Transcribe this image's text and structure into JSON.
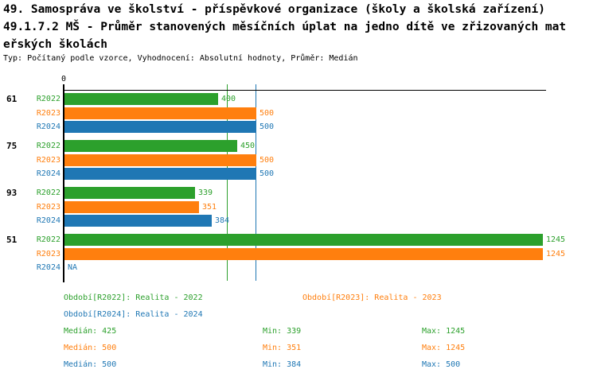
{
  "header": {
    "title_line1": "49. Samospráva ve školství - příspěvkové organizace (školy a školská zařízení)",
    "title_line2": "49.1.7.2 MŠ - Průměr stanovených měsíčních úplat na jedno dítě ve zřizovaných mat",
    "title_line3": "eřských školách",
    "meta_line": "Typ: Počítaný podle vzorce, Vyhodnocení: Absolutní hodnoty, Průměr: Medián"
  },
  "chart_data": {
    "type": "bar",
    "orientation": "horizontal",
    "title": "49. Samospráva ve školství - příspěvkové organizace (školy a školská zařízení)",
    "subtitle": "49.1.7.2 MŠ - Průměr stanovených měsíčních úplat na jedno dítě ve zřizovaných mateřských školách",
    "meta": "Typ: Počítaný podle vzorce, Vyhodnocení: Absolutní hodnoty, Průměr: Medián",
    "x_axis": {
      "origin_label": "0",
      "min": 0,
      "max_value_shown": 1245,
      "grid": false
    },
    "categories": [
      "61",
      "75",
      "93",
      "51"
    ],
    "series": [
      {
        "name": "R2022",
        "color": "#2ca02c",
        "values": [
          400,
          450,
          339,
          1245
        ]
      },
      {
        "name": "R2023",
        "color": "#ff7f0e",
        "values": [
          500,
          500,
          351,
          1245
        ]
      },
      {
        "name": "R2024",
        "color": "#1f77b4",
        "values": [
          500,
          500,
          384,
          null
        ]
      }
    ],
    "value_labels": {
      "na": "NA"
    },
    "median_lines": [
      {
        "series": "R2022",
        "value": 425,
        "color": "#2ca02c"
      },
      {
        "series": "R2023",
        "value": 500,
        "color": "#ff7f0e"
      },
      {
        "series": "R2024",
        "value": 500,
        "color": "#1f77b4"
      }
    ],
    "legend": {
      "position": "bottom",
      "entries": [
        {
          "series": "R2022",
          "label": "Období[R2022]: Realita - 2022",
          "color": "#2ca02c"
        },
        {
          "series": "R2023",
          "label": "Období[R2023]: Realita - 2023",
          "color": "#ff7f0e"
        },
        {
          "series": "R2024",
          "label": "Období[R2024]: Realita - 2024",
          "color": "#1f77b4"
        }
      ]
    },
    "stats": {
      "labels": {
        "median": "Medián",
        "min": "Min",
        "max": "Max"
      },
      "rows": [
        {
          "series": "R2022",
          "median": 425,
          "min": 339,
          "max": 1245,
          "color": "#2ca02c"
        },
        {
          "series": "R2023",
          "median": 500,
          "min": 351,
          "max": 1245,
          "color": "#ff7f0e"
        },
        {
          "series": "R2024",
          "median": 500,
          "min": 384,
          "max": 500,
          "color": "#1f77b4"
        }
      ]
    },
    "axis_color": "#000000"
  }
}
